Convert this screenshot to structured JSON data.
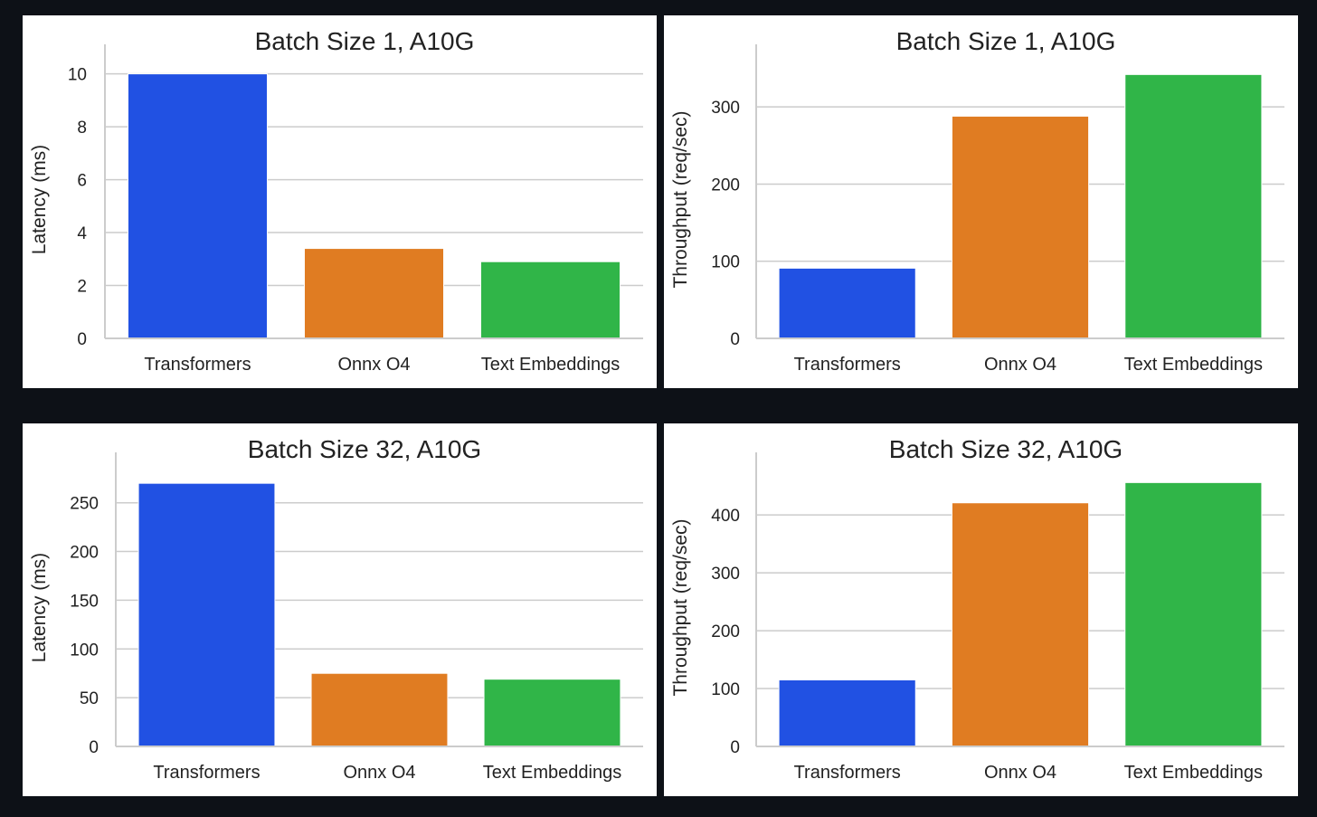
{
  "palette": {
    "background": "#0d1117",
    "panel": "#ffffff",
    "grid": "#cccccc",
    "axis": "#cccccc",
    "text": "#222222"
  },
  "chart_data": [
    {
      "type": "bar",
      "title": "Batch Size 1, A10G",
      "xlabel": "",
      "ylabel": "Latency (ms)",
      "categories": [
        "Transformers",
        "Onnx O4",
        "Text Embeddings"
      ],
      "values": [
        10.0,
        3.4,
        2.9
      ],
      "colors": [
        "#2151e3",
        "#e07c22",
        "#30b548"
      ],
      "ylim": [
        0,
        10.5
      ],
      "yticks": [
        0,
        2,
        4,
        6,
        8,
        10
      ],
      "grid": true
    },
    {
      "type": "bar",
      "title": "Batch Size 1, A10G",
      "xlabel": "",
      "ylabel": "Throughput (req/sec)",
      "categories": [
        "Transformers",
        "Onnx O4",
        "Text Embeddings"
      ],
      "values": [
        91,
        288,
        342
      ],
      "colors": [
        "#2151e3",
        "#e07c22",
        "#30b548"
      ],
      "ylim": [
        0,
        360
      ],
      "yticks": [
        0,
        100,
        200,
        300
      ],
      "grid": true
    },
    {
      "type": "bar",
      "title": "Batch Size 32, A10G",
      "xlabel": "",
      "ylabel": "Latency (ms)",
      "categories": [
        "Transformers",
        "Onnx O4",
        "Text Embeddings"
      ],
      "values": [
        270,
        75,
        69
      ],
      "colors": [
        "#2151e3",
        "#e07c22",
        "#30b548"
      ],
      "ylim": [
        0,
        285
      ],
      "yticks": [
        0,
        50,
        100,
        150,
        200,
        250
      ],
      "grid": true
    },
    {
      "type": "bar",
      "title": "Batch Size 32, A10G",
      "xlabel": "",
      "ylabel": "Throughput (req/sec)",
      "categories": [
        "Transformers",
        "Onnx O4",
        "Text Embeddings"
      ],
      "values": [
        115,
        421,
        456
      ],
      "colors": [
        "#2151e3",
        "#e07c22",
        "#30b548"
      ],
      "ylim": [
        0,
        480
      ],
      "yticks": [
        0,
        100,
        200,
        300,
        400
      ],
      "grid": true
    }
  ]
}
